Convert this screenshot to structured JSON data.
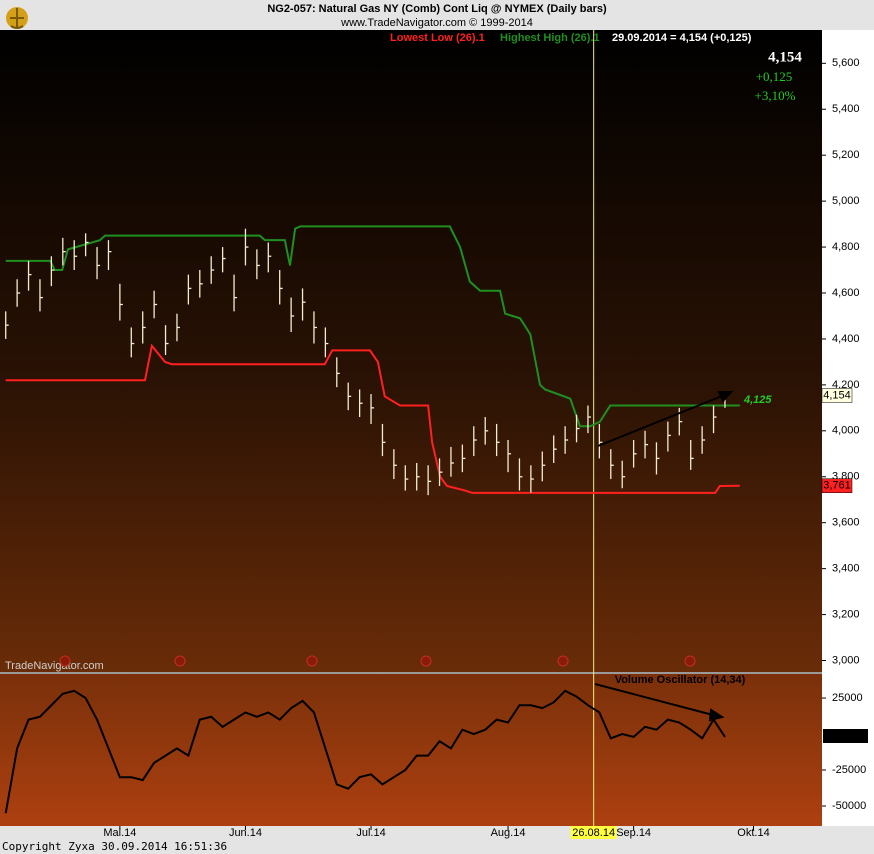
{
  "header": {
    "title": "NG2-057:  Natural Gas NY (Comb) Cont Liq @ NYMEX  (Daily bars)",
    "subtitle": "www.TradeNavigator.com © 1999-2014"
  },
  "watermark": "TradeNavigator.com",
  "footer": {
    "copyright": "Copyright Zyxa    30.09.2014 16:51:36"
  },
  "chart_data": [
    {
      "type": "ohlc",
      "quote": "29.09.2014 = 4,154 (+0,125)",
      "last": {
        "price": "4,154",
        "change": "+0,125",
        "percent": "+3,10%"
      },
      "bars": {
        "color": "#f3edcf",
        "x": [
          0,
          2,
          4,
          6,
          8,
          10,
          12,
          14,
          16,
          18,
          20,
          22,
          24,
          26,
          28,
          30,
          32,
          34,
          36,
          38,
          40,
          42,
          44,
          46,
          48,
          50,
          52,
          54,
          56,
          58,
          60,
          62,
          64,
          66,
          68,
          70,
          72,
          74,
          76,
          78,
          80,
          82,
          84,
          86,
          88,
          90,
          92,
          94,
          96,
          98,
          100,
          102,
          104,
          106,
          108,
          110,
          112,
          114,
          116,
          118,
          120,
          122,
          124,
          126
        ],
        "high": [
          4520,
          4660,
          4740,
          4660,
          4760,
          4840,
          4830,
          4860,
          4800,
          4830,
          4640,
          4450,
          4520,
          4610,
          4460,
          4510,
          4680,
          4700,
          4760,
          4800,
          4680,
          4880,
          4790,
          4820,
          4700,
          4580,
          4620,
          4520,
          4450,
          4320,
          4210,
          4180,
          4160,
          4030,
          3920,
          3850,
          3860,
          3850,
          3880,
          3930,
          3940,
          4020,
          4060,
          4030,
          3960,
          3880,
          3850,
          3910,
          3980,
          4020,
          4070,
          4110,
          4030,
          3920,
          3870,
          3960,
          4000,
          3950,
          4040,
          4100,
          3960,
          4020,
          4110,
          4170
        ],
        "low": [
          4400,
          4540,
          4610,
          4520,
          4630,
          4720,
          4700,
          4760,
          4660,
          4700,
          4480,
          4320,
          4380,
          4490,
          4330,
          4390,
          4550,
          4580,
          4640,
          4690,
          4520,
          4720,
          4660,
          4690,
          4550,
          4430,
          4480,
          4380,
          4320,
          4190,
          4090,
          4060,
          4030,
          3890,
          3790,
          3740,
          3740,
          3720,
          3760,
          3800,
          3820,
          3890,
          3940,
          3890,
          3820,
          3740,
          3730,
          3780,
          3860,
          3900,
          3950,
          3990,
          3880,
          3790,
          3750,
          3840,
          3880,
          3810,
          3910,
          3980,
          3830,
          3900,
          3990,
          4100
        ],
        "close": [
          4460,
          4600,
          4680,
          4580,
          4700,
          4780,
          4760,
          4820,
          4720,
          4780,
          4550,
          4380,
          4450,
          4550,
          4380,
          4450,
          4620,
          4640,
          4700,
          4750,
          4580,
          4800,
          4720,
          4760,
          4620,
          4500,
          4560,
          4450,
          4380,
          4250,
          4150,
          4120,
          4100,
          3950,
          3850,
          3790,
          3800,
          3780,
          3820,
          3860,
          3880,
          3960,
          4000,
          3950,
          3900,
          3800,
          3790,
          3850,
          3920,
          3960,
          4010,
          4060,
          3950,
          3850,
          3800,
          3900,
          3940,
          3880,
          3980,
          4040,
          3880,
          3960,
          4060,
          4154
        ]
      },
      "series": [
        {
          "name": "Lowest Low (26).1",
          "color": "#ff2020",
          "x": [
            0,
            24.4,
            25.6,
            27.9,
            29.1,
            55.9,
            57.2,
            63.8,
            65.2,
            66.4,
            69.1,
            74.0,
            74.7,
            76.1,
            77.3,
            80.5,
            81.7,
            124.3,
            125.1,
            128.6
          ],
          "values": [
            4220,
            4220,
            4370,
            4300,
            4290,
            4290,
            4350,
            4350,
            4300,
            4150,
            4110,
            4110,
            3950,
            3800,
            3760,
            3740,
            3730,
            3730,
            3760,
            3761
          ]
        },
        {
          "name": "Highest High (26).1",
          "color": "#1f8f1f",
          "x": [
            0,
            7.8,
            8.6,
            9.9,
            10.9,
            16.5,
            17.4,
            44.5,
            45.4,
            48.9,
            49.8,
            50.7,
            51.6,
            77.8,
            79.6,
            81.3,
            83.1,
            86.6,
            87.5,
            90.1,
            91.9,
            93.6,
            94.5,
            98.9,
            100.6,
            102.4,
            104.1,
            105.9,
            128.6
          ],
          "values": [
            4740,
            4740,
            4700,
            4700,
            4790,
            4830,
            4850,
            4850,
            4830,
            4830,
            4720,
            4880,
            4890,
            4890,
            4800,
            4650,
            4610,
            4610,
            4510,
            4490,
            4420,
            4200,
            4180,
            4140,
            4020,
            4020,
            4040,
            4110,
            4110
          ]
        }
      ],
      "annotations": [
        {
          "text": "4,154",
          "value": 4154,
          "color": "#ffffe0"
        },
        {
          "text": "3,761",
          "value": 3761,
          "color": "#ff2020"
        },
        {
          "text": "4,125",
          "value": 4125,
          "color": "#22cc22"
        }
      ],
      "cursor": {
        "x": 103,
        "label": "26.08.14"
      },
      "xlim": [
        -1,
        143
      ],
      "ylim": [
        2950,
        5745
      ],
      "yticks": [
        {
          "value": 3000,
          "label": "3,000"
        },
        {
          "value": 3200,
          "label": "3,200"
        },
        {
          "value": 3400,
          "label": "3,400"
        },
        {
          "value": 3600,
          "label": "3,600"
        },
        {
          "value": 3800,
          "label": "3,800"
        },
        {
          "value": 4000,
          "label": "4,000"
        },
        {
          "value": 4200,
          "label": "4,200"
        },
        {
          "value": 4400,
          "label": "4,400"
        },
        {
          "value": 4600,
          "label": "4,600"
        },
        {
          "value": 4800,
          "label": "4,800"
        },
        {
          "value": 5000,
          "label": "5,000"
        },
        {
          "value": 5200,
          "label": "5,200"
        },
        {
          "value": 5400,
          "label": "5,400"
        },
        {
          "value": 5600,
          "label": "5,600"
        }
      ]
    },
    {
      "type": "line",
      "title": "Volume Oscillator (14,34)",
      "series": [
        {
          "color": "#000000",
          "x": [
            0,
            2,
            4,
            6,
            8,
            10,
            12,
            14,
            16,
            18,
            20,
            22,
            24,
            26,
            28,
            30,
            32,
            34,
            36,
            38,
            40,
            42,
            44,
            46,
            48,
            50,
            52,
            54,
            56,
            58,
            60,
            62,
            64,
            66,
            68,
            70,
            72,
            74,
            76,
            78,
            80,
            82,
            84,
            86,
            88,
            90,
            92,
            94,
            96,
            98,
            100,
            102,
            104,
            106,
            108,
            110,
            112,
            114,
            116,
            118,
            120,
            122,
            124,
            126
          ],
          "values": [
            -55000,
            -10000,
            10000,
            12000,
            20000,
            28000,
            30000,
            25000,
            10000,
            -10000,
            -30000,
            -30000,
            -32000,
            -20000,
            -15000,
            -10000,
            -15000,
            10000,
            12000,
            5000,
            10000,
            15000,
            12000,
            15000,
            10000,
            18000,
            23000,
            15000,
            -10000,
            -35000,
            -38000,
            -30000,
            -28000,
            -35000,
            -30000,
            -25000,
            -15000,
            -15000,
            -5000,
            -10000,
            3000,
            0,
            3000,
            10000,
            8000,
            20000,
            20000,
            18000,
            22000,
            30000,
            26000,
            20000,
            15000,
            -3000,
            0,
            -2000,
            5000,
            3000,
            10000,
            8000,
            3000,
            -3000,
            10000,
            -2000
          ]
        }
      ],
      "xlim": [
        -1,
        143
      ],
      "xticks": [
        {
          "value": 20,
          "label": "Mai.14"
        },
        {
          "value": 42,
          "label": "Jun.14"
        },
        {
          "value": 64,
          "label": "Jul.14"
        },
        {
          "value": 88,
          "label": "Aug.14"
        },
        {
          "value": 110,
          "label": "Sep.14"
        },
        {
          "value": 131,
          "label": "Okt.14"
        }
      ],
      "ylim": [
        -63900,
        41700
      ],
      "yticks": [
        25000,
        -25000,
        -50000
      ]
    }
  ]
}
